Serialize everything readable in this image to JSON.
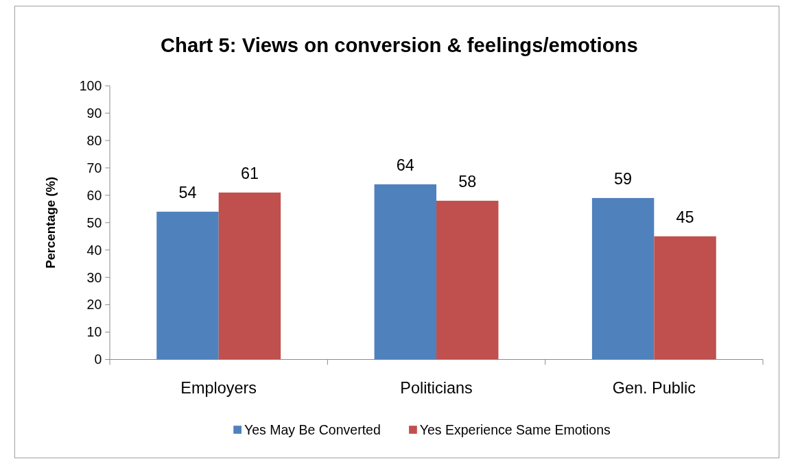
{
  "chart_data": {
    "type": "bar",
    "title": "Chart 5:  Views on conversion & feelings/emotions",
    "ylabel": "Percentage (%)",
    "categories": [
      "Employers",
      "Politicians",
      "Gen. Public"
    ],
    "series": [
      {
        "name": "Yes May Be Converted",
        "color": "#4f81bd",
        "values": [
          54,
          64,
          59
        ]
      },
      {
        "name": "Yes Experience Same Emotions",
        "color": "#c0504d",
        "values": [
          61,
          58,
          45
        ]
      }
    ],
    "ylim": [
      0,
      100
    ],
    "yticks": [
      0,
      10,
      20,
      30,
      40,
      50,
      60,
      70,
      80,
      90,
      100
    ],
    "data_labels": true,
    "legend": "bottom"
  }
}
